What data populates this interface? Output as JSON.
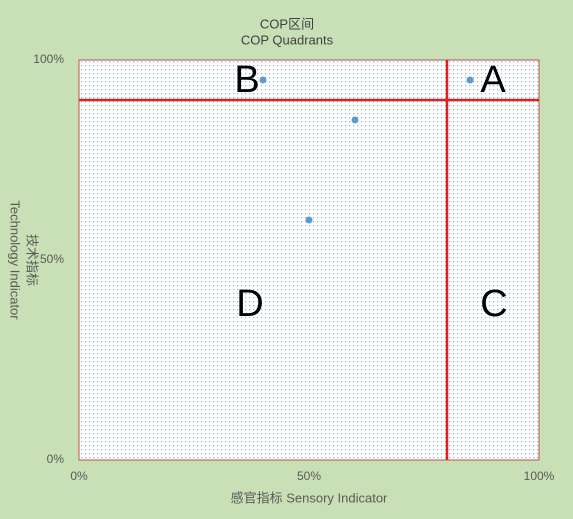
{
  "chart_data": {
    "type": "scatter",
    "title": [
      "COP区间",
      "COP Quadrants"
    ],
    "x_label": "感官指标 Sensory Indicator",
    "y_label": [
      "技术指标",
      "Technology Indicator"
    ],
    "series": [
      {
        "color": "#5b9bd5",
        "x": [
          40,
          85,
          60,
          50
        ],
        "values": [
          95,
          95,
          85,
          60
        ]
      }
    ],
    "xlim": [
      0,
      100
    ],
    "ylim": [
      0,
      100
    ],
    "xticks": [
      {
        "value": 0,
        "label": "0%"
      },
      {
        "value": 50,
        "label": "50%"
      },
      {
        "value": 100,
        "label": "100%"
      }
    ],
    "yticks": [
      {
        "value": 0,
        "label": "0%"
      },
      {
        "value": 50,
        "label": "50%"
      },
      {
        "value": 100,
        "label": "100%"
      }
    ],
    "reference_lines": {
      "x": 80,
      "y": 90,
      "color": "#e02020"
    },
    "annotations": [
      "A",
      "B",
      "C",
      "D"
    ],
    "grid": false
  }
}
